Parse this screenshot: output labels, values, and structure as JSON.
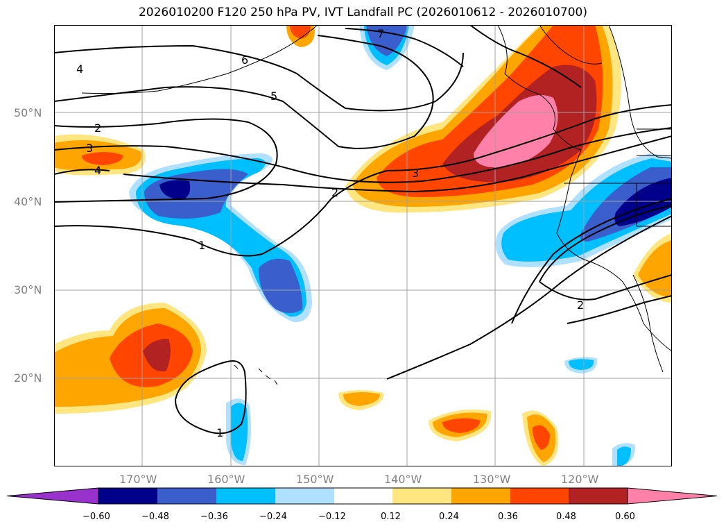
{
  "title": "2026010200 F120 250 hPa PV, IVT Landfall PC (2026010612 - 2026010700)",
  "lat_labels": [
    "50°N",
    "40°N",
    "30°N",
    "20°N"
  ],
  "lon_labels": [
    "170°W",
    "160°W",
    "150°W",
    "140°W",
    "130°W",
    "120°W"
  ],
  "contour_labels": [
    "7",
    "6",
    "5",
    "4",
    "4",
    "3",
    "2",
    "3",
    "2",
    "1",
    "1",
    "2"
  ],
  "colorbar": {
    "ticks": [
      "−0.60",
      "−0.48",
      "−0.36",
      "−0.24",
      "−0.12",
      "0.12",
      "0.24",
      "0.36",
      "0.48",
      "0.60"
    ],
    "colors": [
      "#9932cc",
      "#00008b",
      "#3a5fcd",
      "#00bfff",
      "#b0e0ff",
      "#ffffff",
      "#ffe680",
      "#ffa500",
      "#ff4500",
      "#b22222",
      "#ff80a8"
    ]
  }
}
